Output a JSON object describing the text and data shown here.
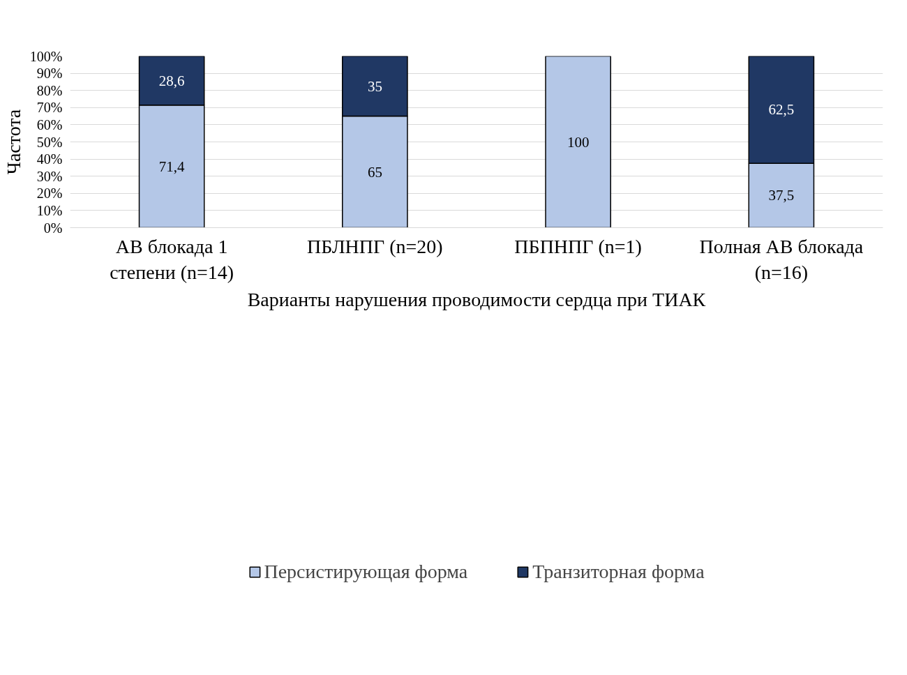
{
  "chart_data": {
    "type": "bar",
    "stacked": true,
    "xlabel": "Варианты нарушения проводимости сердца при ТИАК",
    "ylabel": "Частота",
    "categories": [
      "АВ блокада 1 степени (n=14)",
      "ПБЛНПГ (n=20)",
      "ПБПНПГ (n=1)",
      "Полная АВ блокада (n=16)"
    ],
    "series": [
      {
        "name": "Персистирующая форма",
        "color": "#b4c7e7",
        "values": [
          71.4,
          65,
          100,
          37.5
        ],
        "value_labels": [
          "71,4",
          "65",
          "100",
          "37,5"
        ]
      },
      {
        "name": "Транзиторная форма",
        "color": "#203864",
        "values": [
          28.6,
          35,
          null,
          62.5
        ],
        "value_labels": [
          "28,6",
          "35",
          null,
          "62,5"
        ]
      }
    ],
    "ylim": [
      0,
      100
    ],
    "yticks": [
      {
        "value": 0,
        "label": "0%"
      },
      {
        "value": 10,
        "label": "10%"
      },
      {
        "value": 20,
        "label": "20%"
      },
      {
        "value": 30,
        "label": "30%"
      },
      {
        "value": 40,
        "label": "40%"
      },
      {
        "value": 50,
        "label": "50%"
      },
      {
        "value": 60,
        "label": "60%"
      },
      {
        "value": 70,
        "label": "70%"
      },
      {
        "value": 80,
        "label": "80%"
      },
      {
        "value": 90,
        "label": "90%"
      },
      {
        "value": 100,
        "label": "100%"
      }
    ],
    "grid": "y",
    "legend": "bottom"
  }
}
